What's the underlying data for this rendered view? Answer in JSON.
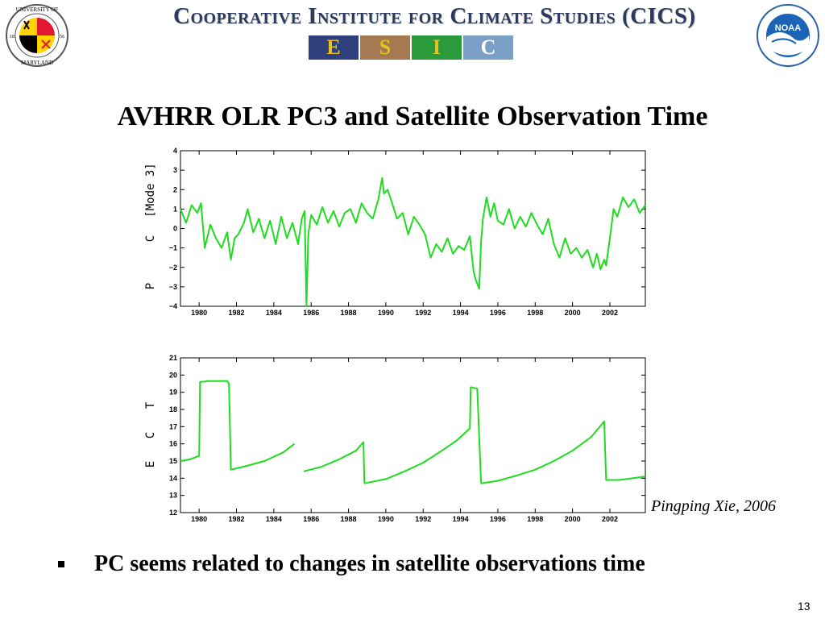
{
  "header": {
    "banner_title": "Cooperative Institute for Climate Studies (CICS)",
    "left_logo": {
      "name": "University of Maryland seal",
      "text_top": "UNIVERSITY OF",
      "text_bottom": "MARYLAND",
      "year_left": "18",
      "year_right": "56"
    },
    "right_logo": {
      "name": "NOAA logo",
      "text": "NOAA"
    },
    "esic_letters": [
      "E",
      "S",
      "I",
      "C"
    ]
  },
  "slide": {
    "title": "AVHRR OLR PC3 and Satellite Observation Time",
    "credit": "Pingping Xie, 2006",
    "bullet": "PC seems related to changes in satellite observations time",
    "page_number": "13"
  },
  "colors": {
    "series": "#1edc1e",
    "banner_text": "#2c3a5c",
    "axis": "#000000"
  },
  "chart_data": [
    {
      "type": "line",
      "ylabel": "P  C [Mode 3]",
      "ylabel_chars": [
        "P",
        "C",
        "[Mode 3]"
      ],
      "xlim": [
        1979.0,
        2003.9
      ],
      "ylim": [
        -4,
        4
      ],
      "x_ticks": [
        1980,
        1982,
        1984,
        1986,
        1988,
        1990,
        1992,
        1994,
        1996,
        1998,
        2000,
        2002
      ],
      "y_ticks": [
        -4,
        -3,
        -2,
        -1,
        0,
        1,
        2,
        3,
        4
      ],
      "y_tick_labels": [
        "−4",
        "−3",
        "−2",
        "−1",
        "0",
        "1",
        "2",
        "3",
        "4"
      ],
      "grid": false,
      "series": [
        {
          "x": [
            1979.0,
            1979.3,
            1979.6,
            1979.9,
            1980.1,
            1980.3,
            1980.6,
            1980.9,
            1981.2,
            1981.5,
            1981.7,
            1981.9,
            1982.1,
            1982.4,
            1982.6,
            1982.9,
            1983.2,
            1983.5,
            1983.8,
            1984.1,
            1984.4,
            1984.7,
            1985.0,
            1985.3,
            1985.5,
            1985.65,
            1985.75,
            1985.85,
            1986.0,
            1986.3,
            1986.6,
            1986.9,
            1987.2,
            1987.5,
            1987.8,
            1988.1,
            1988.4,
            1988.7,
            1989.0,
            1989.3,
            1989.6,
            1989.8,
            1989.9,
            1990.1,
            1990.3,
            1990.6,
            1990.9,
            1991.2,
            1991.5,
            1991.8,
            1992.1,
            1992.4,
            1992.7,
            1993.0,
            1993.3,
            1993.6,
            1993.9,
            1994.2,
            1994.5,
            1994.7,
            1994.8,
            1995.0,
            1995.1,
            1995.2,
            1995.4,
            1995.6,
            1995.8,
            1996.0,
            1996.3,
            1996.6,
            1996.9,
            1997.2,
            1997.5,
            1997.8,
            1998.1,
            1998.4,
            1998.7,
            1999.0,
            1999.3,
            1999.6,
            1999.9,
            2000.2,
            2000.5,
            2000.8,
            2001.1,
            2001.3,
            2001.5,
            2001.7,
            2001.8,
            2002.0,
            2002.2,
            2002.4,
            2002.7,
            2003.0,
            2003.3,
            2003.6,
            2003.9
          ],
          "y": [
            1.0,
            0.3,
            1.2,
            0.8,
            1.3,
            -1.0,
            0.2,
            -0.5,
            -1.0,
            -0.2,
            -1.6,
            -0.5,
            -0.3,
            0.3,
            1.0,
            -0.2,
            0.5,
            -0.5,
            0.4,
            -0.8,
            0.6,
            -0.5,
            0.3,
            -0.8,
            0.5,
            0.9,
            -4.0,
            -0.3,
            0.7,
            0.2,
            1.1,
            0.3,
            0.9,
            0.1,
            0.8,
            1.0,
            0.3,
            1.3,
            0.8,
            0.5,
            1.5,
            2.6,
            1.8,
            2.0,
            1.4,
            0.5,
            0.8,
            -0.3,
            0.6,
            0.2,
            -0.3,
            -1.5,
            -0.8,
            -1.2,
            -0.5,
            -1.3,
            -0.9,
            -1.1,
            -0.4,
            -2.2,
            -2.6,
            -3.1,
            -0.7,
            0.5,
            1.6,
            0.6,
            1.3,
            0.4,
            0.2,
            1.0,
            0.0,
            0.6,
            0.1,
            0.8,
            0.2,
            -0.3,
            0.5,
            -0.8,
            -1.5,
            -0.5,
            -1.3,
            -1.0,
            -1.5,
            -1.1,
            -2.0,
            -1.3,
            -2.1,
            -1.6,
            -1.9,
            -0.5,
            1.0,
            0.6,
            1.6,
            1.1,
            1.5,
            0.8,
            1.2
          ]
        }
      ]
    },
    {
      "type": "line",
      "ylabel": "E  C  T",
      "ylabel_chars": [
        "E",
        "C",
        "T"
      ],
      "xlim": [
        1979.0,
        2003.9
      ],
      "ylim": [
        12,
        21
      ],
      "x_ticks": [
        1980,
        1982,
        1984,
        1986,
        1988,
        1990,
        1992,
        1994,
        1996,
        1998,
        2000,
        2002
      ],
      "y_ticks": [
        12,
        13,
        14,
        15,
        16,
        17,
        18,
        19,
        20,
        21
      ],
      "grid": false,
      "series": [
        {
          "segments": [
            {
              "x": [
                1979.0,
                1979.5,
                1980.0,
                1980.05,
                1980.5,
                1981.0,
                1981.5,
                1981.6,
                1981.7,
                1982.5,
                1983.5,
                1984.5,
                1985.1
              ],
              "y": [
                15.0,
                15.1,
                15.3,
                19.6,
                19.65,
                19.65,
                19.65,
                19.5,
                14.5,
                14.7,
                15.0,
                15.5,
                16.0
              ]
            },
            {
              "x": [
                1985.6,
                1986.5,
                1987.5,
                1988.4,
                1988.8,
                1988.85
              ],
              "y": [
                14.4,
                14.65,
                15.1,
                15.6,
                16.1,
                13.7
              ]
            },
            {
              "x": [
                1988.85,
                1990.0,
                1991.0,
                1992.0,
                1993.0,
                1993.8,
                1994.5,
                1994.55,
                1994.9,
                1995.1
              ],
              "y": [
                13.7,
                13.95,
                14.4,
                14.9,
                15.6,
                16.2,
                16.9,
                19.3,
                19.2,
                13.7
              ]
            },
            {
              "x": [
                1995.1,
                1996.0,
                1997.0,
                1998.0,
                1999.0,
                2000.0,
                2001.0,
                2001.7,
                2001.8,
                2002.5,
                2003.9
              ],
              "y": [
                13.7,
                13.85,
                14.15,
                14.5,
                15.0,
                15.6,
                16.4,
                17.3,
                13.9,
                13.9,
                14.1
              ]
            }
          ]
        }
      ]
    }
  ]
}
